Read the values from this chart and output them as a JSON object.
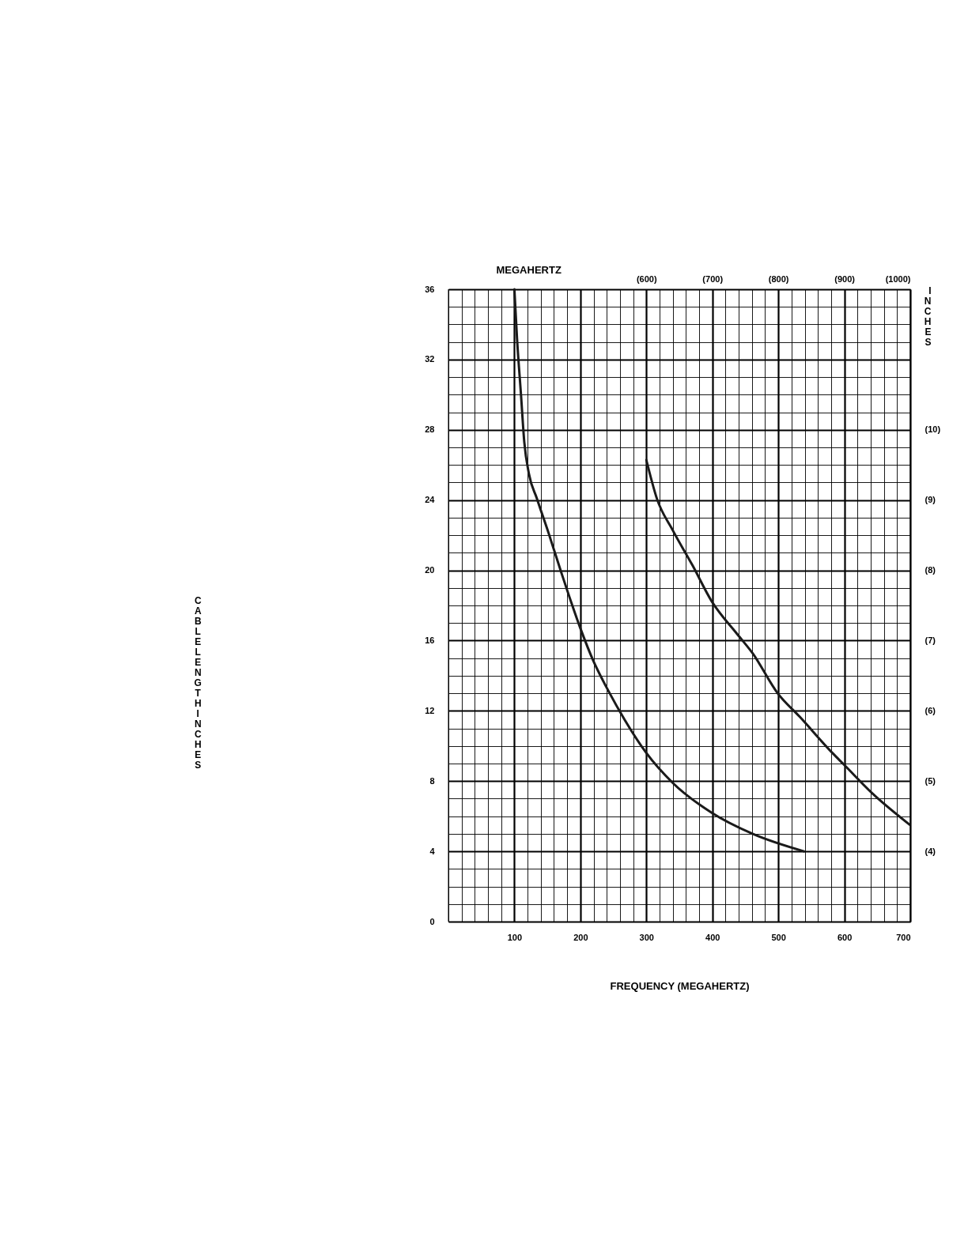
{
  "chart_data": {
    "type": "line",
    "x2label": "MEGAHERTZ",
    "xlabel": "FREQUENCY (MEGAHERTZ)",
    "ylabel": "CABLE LENGTH  INCHES",
    "y2label": "INCHES",
    "grid": true,
    "line_style": "solid",
    "marker": "none",
    "xlim": [
      0,
      700
    ],
    "ylim": [
      0,
      36
    ],
    "x2lim": [
      300,
      1000
    ],
    "y2lim": [
      3,
      12
    ],
    "xticks": [
      {
        "value": 0,
        "label": null
      },
      {
        "value": 20,
        "label": null
      },
      {
        "value": 40,
        "label": null
      },
      {
        "value": 60,
        "label": null
      },
      {
        "value": 80,
        "label": null
      },
      100,
      {
        "value": 120,
        "label": null
      },
      {
        "value": 140,
        "label": null
      },
      {
        "value": 160,
        "label": null
      },
      {
        "value": 180,
        "label": null
      },
      200,
      {
        "value": 220,
        "label": null
      },
      {
        "value": 240,
        "label": null
      },
      {
        "value": 260,
        "label": null
      },
      {
        "value": 280,
        "label": null
      },
      300,
      {
        "value": 320,
        "label": null
      },
      {
        "value": 340,
        "label": null
      },
      {
        "value": 360,
        "label": null
      },
      {
        "value": 380,
        "label": null
      },
      400,
      {
        "value": 420,
        "label": null
      },
      {
        "value": 440,
        "label": null
      },
      {
        "value": 460,
        "label": null
      },
      {
        "value": 480,
        "label": null
      },
      500,
      {
        "value": 520,
        "label": null
      },
      {
        "value": 540,
        "label": null
      },
      {
        "value": 560,
        "label": null
      },
      {
        "value": 580,
        "label": null
      },
      600,
      {
        "value": 620,
        "label": null
      },
      {
        "value": 640,
        "label": null
      },
      {
        "value": 660,
        "label": null
      },
      {
        "value": 680,
        "label": null
      },
      700
    ],
    "yticks": [
      0,
      {
        "value": 1,
        "label": null
      },
      {
        "value": 2,
        "label": null
      },
      {
        "value": 3,
        "label": null
      },
      4,
      {
        "value": 5,
        "label": null
      },
      {
        "value": 6,
        "label": null
      },
      {
        "value": 7,
        "label": null
      },
      8,
      {
        "value": 9,
        "label": null
      },
      {
        "value": 10,
        "label": null
      },
      {
        "value": 11,
        "label": null
      },
      12,
      {
        "value": 13,
        "label": null
      },
      {
        "value": 14,
        "label": null
      },
      {
        "value": 15,
        "label": null
      },
      16,
      {
        "value": 17,
        "label": null
      },
      {
        "value": 18,
        "label": null
      },
      {
        "value": 19,
        "label": null
      },
      20,
      {
        "value": 21,
        "label": null
      },
      {
        "value": 22,
        "label": null
      },
      {
        "value": 23,
        "label": null
      },
      24,
      {
        "value": 25,
        "label": null
      },
      {
        "value": 26,
        "label": null
      },
      {
        "value": 27,
        "label": null
      },
      28,
      {
        "value": 29,
        "label": null
      },
      {
        "value": 30,
        "label": null
      },
      {
        "value": 31,
        "label": null
      },
      32,
      {
        "value": 33,
        "label": null
      },
      {
        "value": 34,
        "label": null
      },
      {
        "value": 35,
        "label": null
      },
      36
    ],
    "x2ticks": [
      {
        "value": 600,
        "label": "(600)"
      },
      {
        "value": 700,
        "label": "(700)"
      },
      {
        "value": 800,
        "label": "(800)"
      },
      {
        "value": 900,
        "label": "(900)"
      },
      {
        "value": 1000,
        "label": "(1000)"
      }
    ],
    "y2ticks": [
      {
        "value": 4,
        "label": "(4)"
      },
      {
        "value": 5,
        "label": "(5)"
      },
      {
        "value": 6,
        "label": "(6)"
      },
      {
        "value": 7,
        "label": "(7)"
      },
      {
        "value": 8,
        "label": "(8)"
      },
      {
        "value": 9,
        "label": "(9)"
      },
      {
        "value": 10,
        "label": "(10)"
      }
    ],
    "series": [
      {
        "color": "#1a1a1a",
        "x": [
          100,
          104,
          110,
          115,
          122,
          134,
          152,
          170,
          201,
          219,
          243,
          267,
          300,
          340,
          399,
          461,
          539
        ],
        "values": [
          36,
          33.2,
          30,
          27.3,
          25.5,
          24.1,
          22.1,
          20,
          16.6,
          14.9,
          13.1,
          11.5,
          9.6,
          7.9,
          6.2,
          5,
          4
        ]
      },
      {
        "color": "#1a1a1a",
        "axis": "y2",
        "x": [
          300,
          316,
          340,
          370,
          399,
          437,
          461,
          499,
          533,
          582,
          600,
          642,
          699
        ],
        "values": [
          9.57,
          9.02,
          8.57,
          8.07,
          7.56,
          7.1,
          6.82,
          6.25,
          5.91,
          5.4,
          5.23,
          4.83,
          4.38
        ]
      }
    ]
  }
}
